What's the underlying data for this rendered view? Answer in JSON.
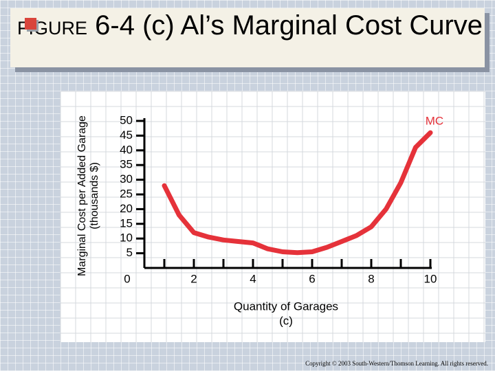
{
  "chart_data": {
    "type": "line",
    "figure_label": "FIGURE",
    "title": "6-4 (c) Al’s Marginal Cost Curve",
    "ylabel": [
      "Marginal Cost per Added Garage",
      "(thousands $)"
    ],
    "xlabel": [
      "Quantity of Garages",
      "(c)"
    ],
    "x": [
      1,
      1.5,
      2,
      2.5,
      3,
      3.5,
      4,
      4.5,
      5,
      5.5,
      6,
      6.5,
      7,
      7.5,
      8,
      8.5,
      9,
      9.5,
      10
    ],
    "series": [
      {
        "name": "MC",
        "color": "#e5323a",
        "values": [
          28,
          18,
          12,
          10.5,
          9.5,
          9,
          8.5,
          6.5,
          5.5,
          5.2,
          5.5,
          7,
          9,
          11,
          14,
          20,
          29,
          41,
          46
        ]
      }
    ],
    "xlim": [
      0,
      10
    ],
    "xticks": [
      0,
      2,
      4,
      6,
      8,
      10
    ],
    "xminorticks": [
      1,
      3,
      5,
      7,
      9
    ],
    "ylim": [
      0,
      50
    ],
    "yticks": [
      5,
      10,
      15,
      20,
      25,
      30,
      35,
      40,
      45,
      50
    ],
    "footnote": "Copyright © 2003 South-Western/Thomson Learning. All rights reserved."
  }
}
